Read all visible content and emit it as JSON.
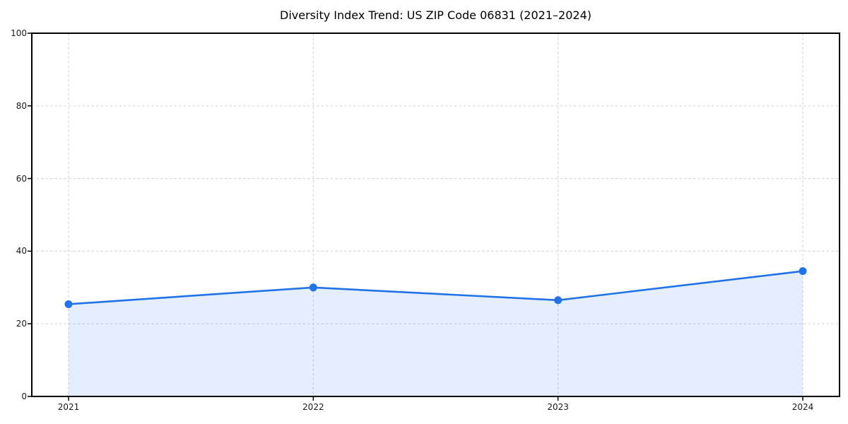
{
  "figure": {
    "background_color": "#ffffff",
    "text_color": "#1a1a1a",
    "spine_color": "#000000",
    "grid_color": "#d9d9d9"
  },
  "chart_data": {
    "type": "area",
    "title": "Diversity Index Trend: US ZIP Code 06831 (2021–2024)",
    "x": [
      "2021",
      "2022",
      "2023",
      "2024"
    ],
    "series": [
      {
        "name": "Diversity Index",
        "values": [
          25.4,
          30.0,
          26.5,
          34.5
        ]
      }
    ],
    "xlabel": "",
    "ylabel": "",
    "ylim": [
      0,
      100
    ],
    "yticks": [
      0,
      20,
      40,
      60,
      80,
      100
    ],
    "grid": true,
    "grid_style": "dashed",
    "legend": "none",
    "line_color": "#2272e8",
    "marker_color": "#2272e8",
    "fill_color": "rgba(34, 114, 232, 0.12)",
    "marker": "circle"
  }
}
